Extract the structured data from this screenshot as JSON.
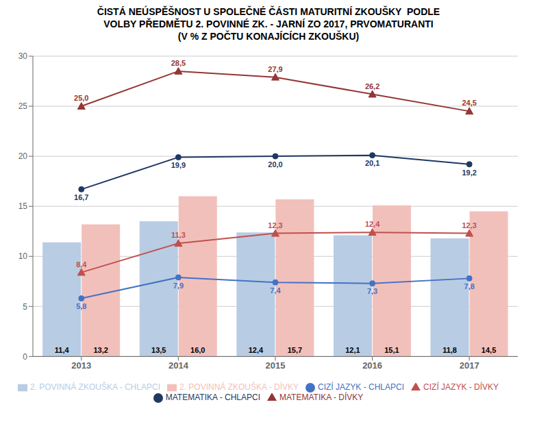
{
  "chart_data": {
    "type": "bar",
    "title": "ČISTÁ NEÚSPĚŠNOST U SPOLEČNÉ ČÁSTI MATURITNÍ ZKOUŠKY  PODLE\nVOLBY PŘEDMĚTU 2. POVINNÉ ZK. - JARNÍ ZO 2017, PRVOMATURANTI\n(V % Z POČTU KONAJÍCÍCH ZKOUŠKU)",
    "categories": [
      "2013",
      "2014",
      "2015",
      "2016",
      "2017"
    ],
    "series": [
      {
        "name": "2. POVINNÁ ZKOUŠKA - CHLAPCI",
        "type": "bar",
        "color": "#b8cce4",
        "values": [
          11.4,
          13.5,
          12.4,
          12.1,
          11.8
        ],
        "value_labels": [
          "11,4",
          "13,5",
          "12,4",
          "12,1",
          "11,8"
        ]
      },
      {
        "name": "2. POVINNÁ ZKOUŠKA - DÍVKY",
        "type": "bar",
        "color": "#f2c0bb",
        "values": [
          13.2,
          16.0,
          15.7,
          15.1,
          14.5
        ],
        "value_labels": [
          "13,2",
          "16,0",
          "15,7",
          "15,1",
          "14,5"
        ]
      },
      {
        "name": "CIZÍ JAZYK - CHLAPCI",
        "type": "line",
        "color": "#4472c4",
        "marker": "circle",
        "values": [
          5.8,
          7.9,
          7.4,
          7.3,
          7.8
        ],
        "value_labels": [
          "5,8",
          "7,9",
          "7,4",
          "7,3",
          "7,8"
        ]
      },
      {
        "name": "MATEMATIKA - CHLAPCI",
        "type": "line",
        "color": "#1f3864",
        "marker": "circle",
        "values": [
          16.7,
          19.9,
          20.0,
          20.1,
          19.2
        ],
        "value_labels": [
          "16,7",
          "19,9",
          "20,0",
          "20,1",
          "19,2"
        ]
      },
      {
        "name": "CIZÍ JAZYK - DÍVKY",
        "type": "line",
        "color": "#c0504d",
        "marker": "triangle",
        "values": [
          8.4,
          11.3,
          12.3,
          12.4,
          12.3
        ],
        "value_labels": [
          "8,4",
          "11,3",
          "12,3",
          "12,4",
          "12,3"
        ]
      },
      {
        "name": "MATEMATIKA - DÍVKY",
        "type": "line",
        "color": "#943634",
        "marker": "triangle",
        "values": [
          25.0,
          28.5,
          27.9,
          26.2,
          24.5
        ],
        "value_labels": [
          "25,0",
          "28,5",
          "27,9",
          "26,2",
          "24,5"
        ]
      }
    ],
    "ylim": [
      0,
      30
    ],
    "yticks": [
      0,
      5,
      10,
      15,
      20,
      25,
      30
    ],
    "grid": true,
    "data_labels": true,
    "legend": "bottom"
  }
}
